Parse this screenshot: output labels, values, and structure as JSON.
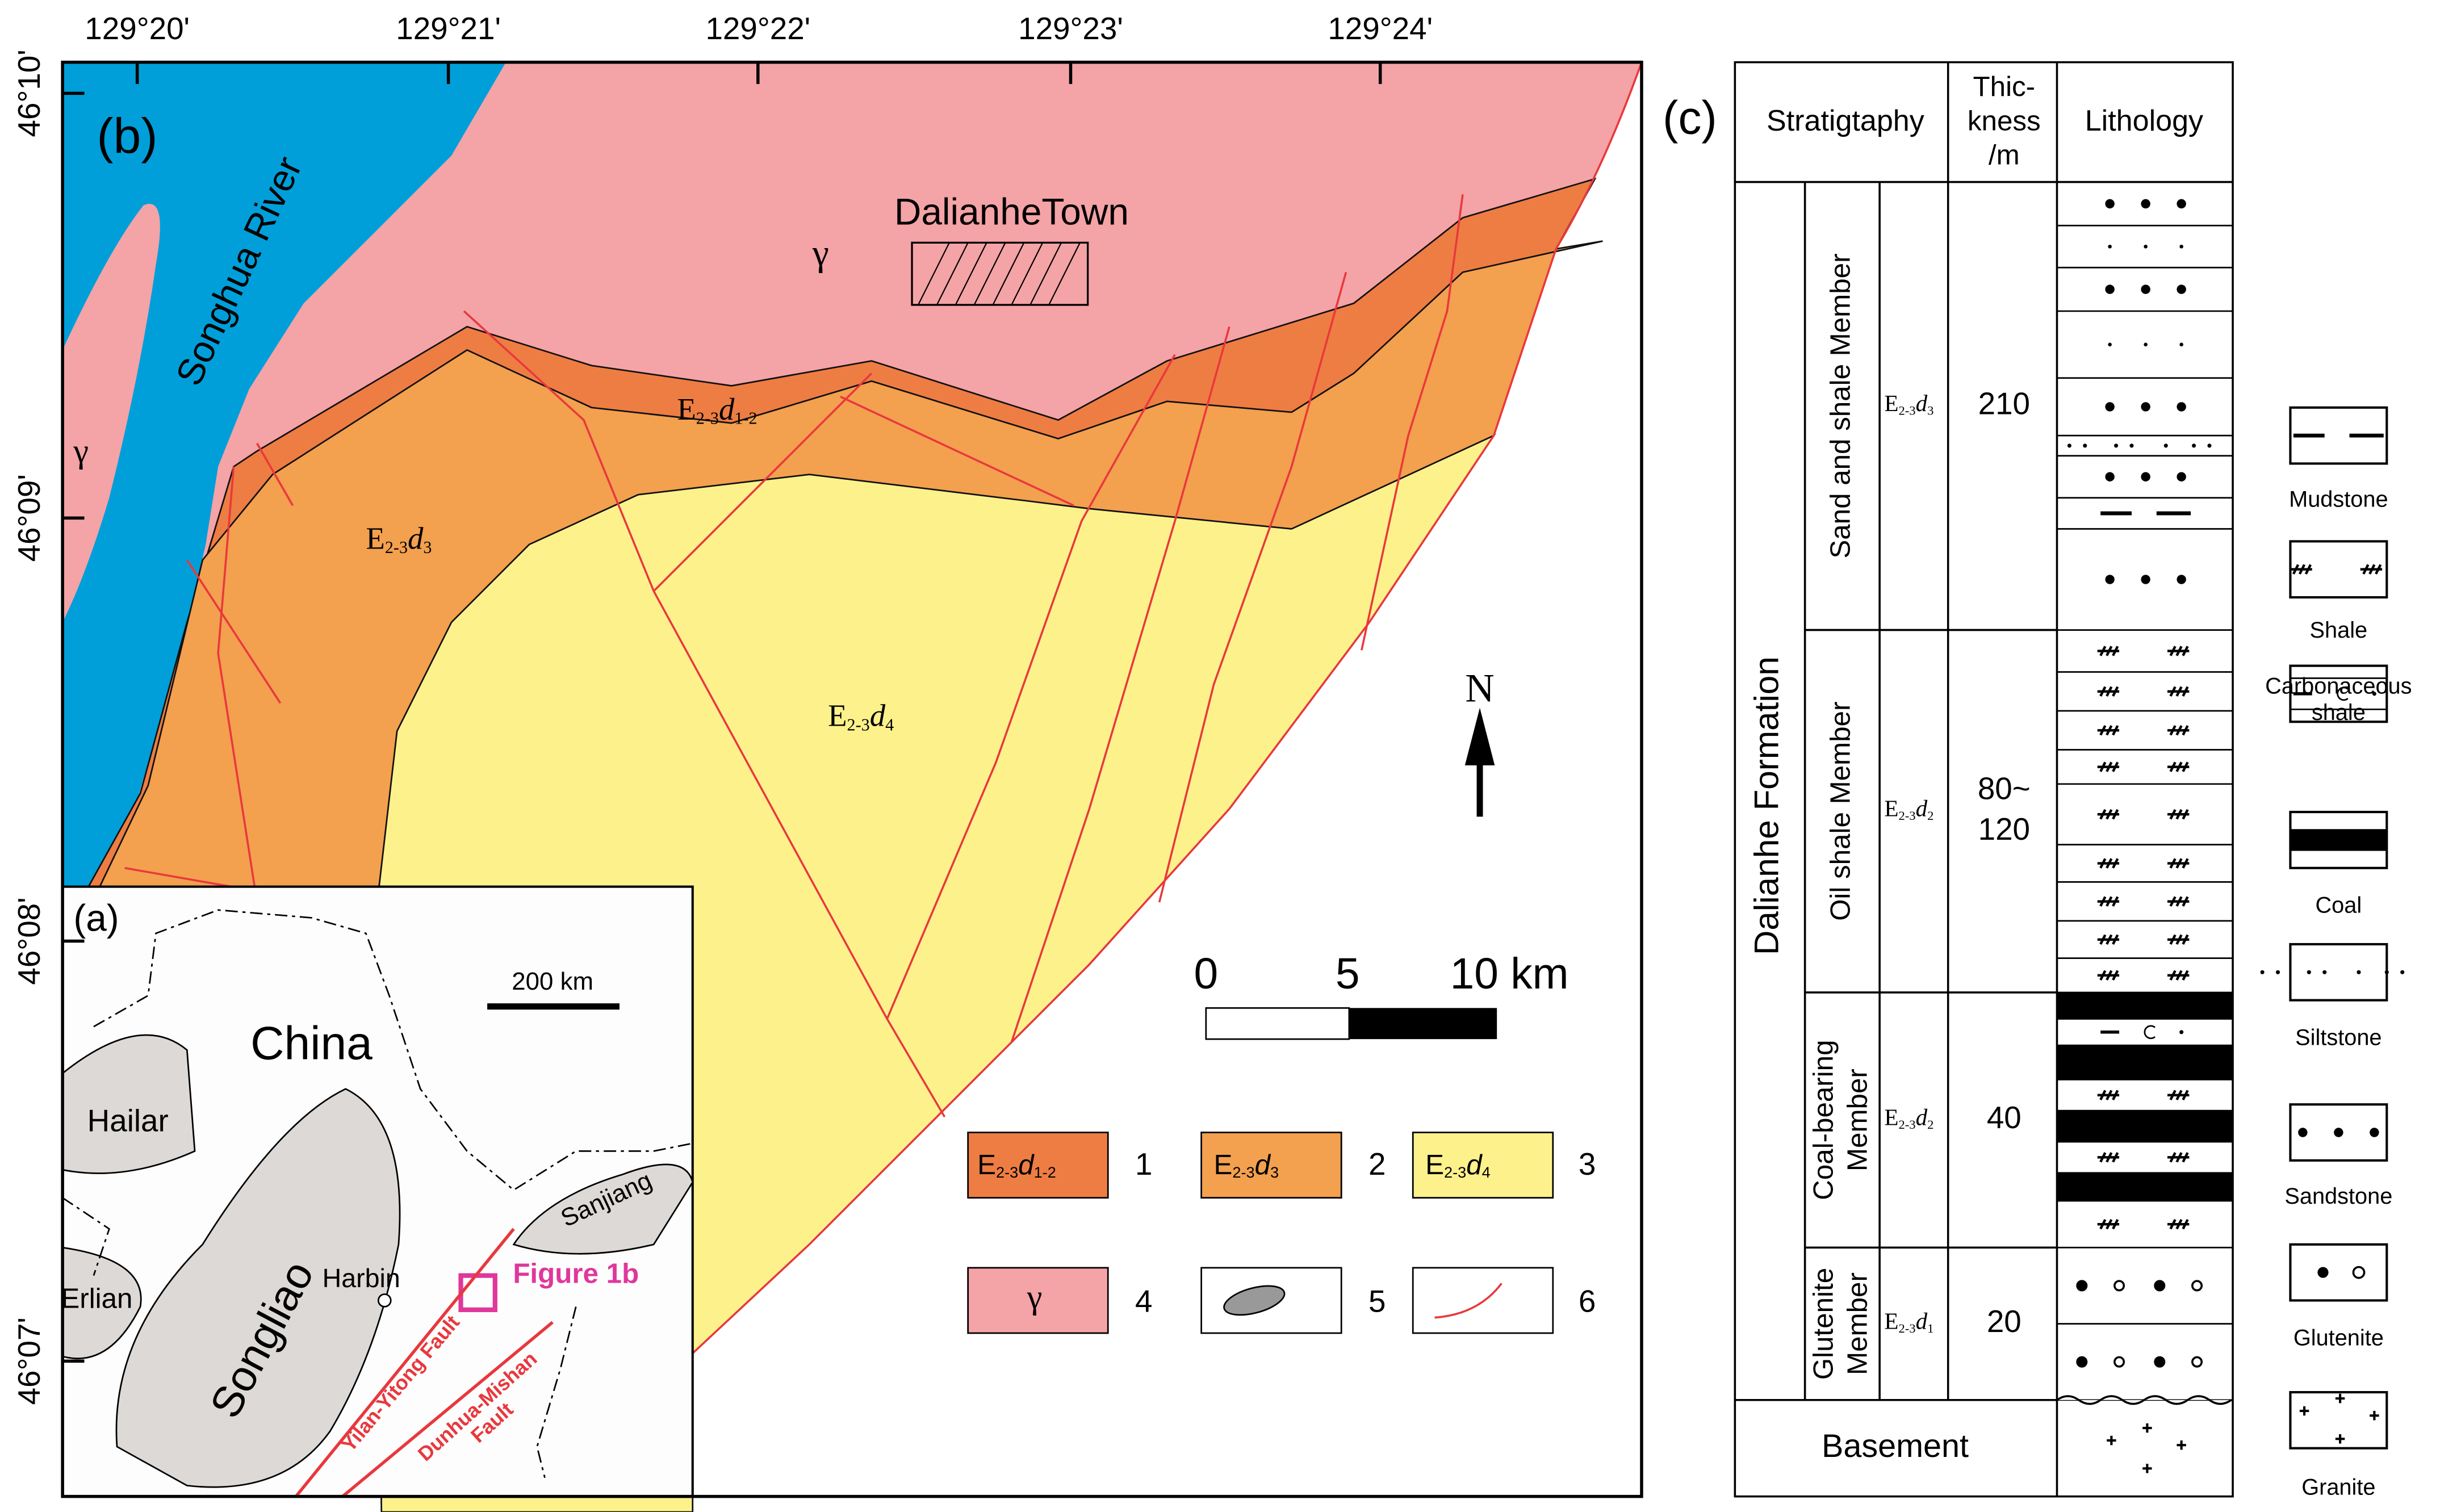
{
  "map": {
    "panel_label": "(b)",
    "lon_ticks": [
      "129°20'",
      "129°21'",
      "129°22'",
      "129°23'",
      "129°24'"
    ],
    "lat_ticks": [
      "46°10'",
      "46°09'",
      "46°08'",
      "46°07'"
    ],
    "river": "Songhua River",
    "town": "DalianheTown",
    "gamma": "γ",
    "unit_d12": {
      "symbol": "E",
      "age": "2-3",
      "letter": "d",
      "index": "1-2"
    },
    "unit_d3": {
      "symbol": "E",
      "age": "2-3",
      "letter": "d",
      "index": "3"
    },
    "unit_d4": {
      "symbol": "E",
      "age": "2-3",
      "letter": "d",
      "index": "4"
    },
    "north": "N",
    "scale_labels": [
      "0",
      "5",
      "10 km"
    ],
    "legend_numbers": [
      "1",
      "2",
      "3",
      "4",
      "5",
      "6"
    ]
  },
  "inset": {
    "panel_label": "(a)",
    "scale_label": "200 km",
    "country": "China",
    "basins": [
      "Hailar",
      "Erlian",
      "Songliao",
      "Sanjiang"
    ],
    "city": "Harbin",
    "figure_ref": "Figure 1b",
    "faults": [
      [
        "Yilan-Yitong Fault"
      ],
      [
        "Dunhua-Mishan",
        "Fault"
      ]
    ]
  },
  "column": {
    "panel_label": "(c)",
    "headers": [
      [
        "Stratigtaphy"
      ],
      [
        "Thic-",
        "kness",
        "/m"
      ],
      [
        "Lithology"
      ]
    ],
    "formation": "Dalianhe Formation",
    "members": [
      {
        "name": [
          "Sand and shale Member"
        ],
        "unit": {
          "symbol": "E",
          "age": "2-3",
          "letter": "d",
          "index": "3"
        },
        "thickness": [
          "210"
        ]
      },
      {
        "name": [
          "Oil shale Member"
        ],
        "unit": {
          "symbol": "E",
          "age": "2-3",
          "letter": "d",
          "index": "2"
        },
        "thickness": [
          "80~",
          "120"
        ]
      },
      {
        "name": [
          "Coal-bearing",
          "Member"
        ],
        "unit": {
          "symbol": "E",
          "age": "2-3",
          "letter": "d",
          "index": "2"
        },
        "thickness": [
          "40"
        ]
      },
      {
        "name": [
          "Glutenite",
          "Member"
        ],
        "unit": {
          "symbol": "E",
          "age": "2-3",
          "letter": "d",
          "index": "1"
        },
        "thickness": [
          "20"
        ]
      }
    ],
    "basement": "Basement",
    "legend": [
      [
        "Mudstone"
      ],
      [
        "Shale"
      ],
      [
        "Carbonaceous",
        "shale"
      ],
      [
        "Coal"
      ],
      [
        "Siltstone"
      ],
      [
        "Sandstone"
      ],
      [
        "Glutenite"
      ],
      [
        "Granite"
      ]
    ]
  }
}
